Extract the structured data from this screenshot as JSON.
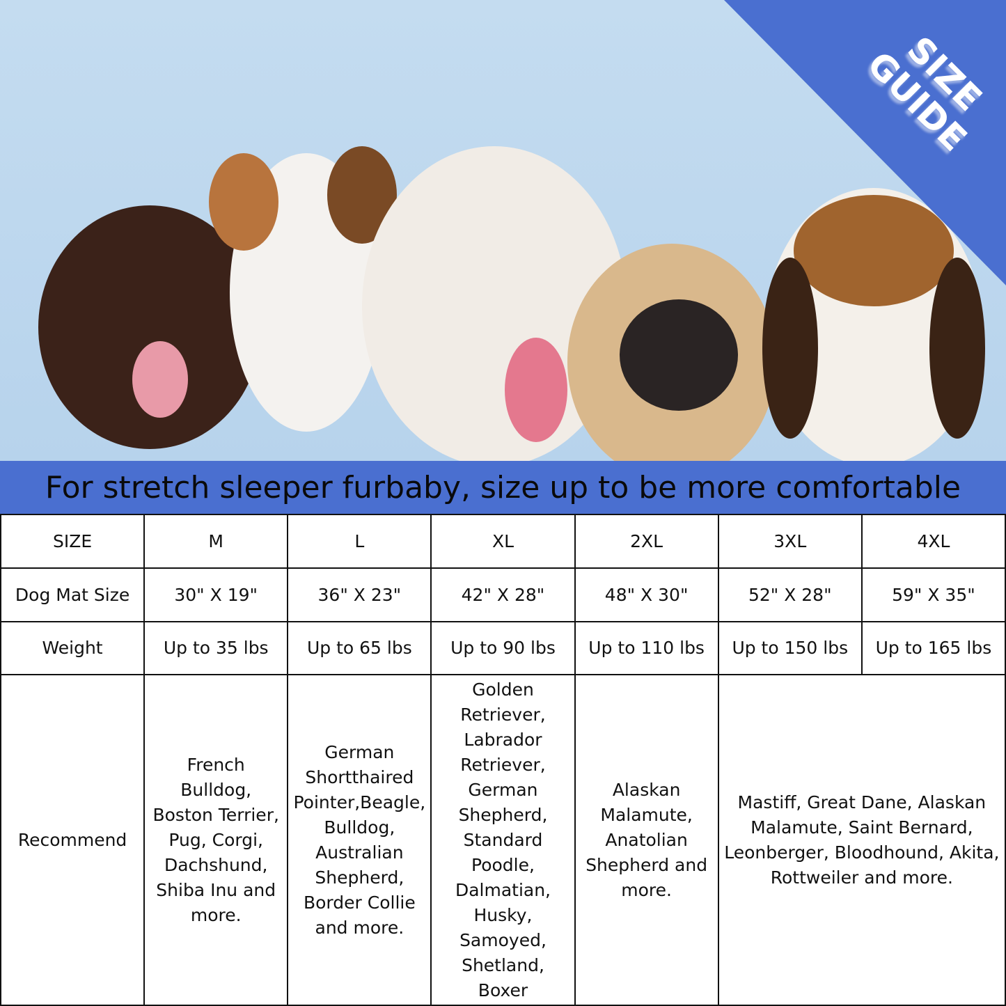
{
  "corner_label": [
    "SIZE",
    "GUIDE"
  ],
  "banner": "For stretch sleeper furbaby, size up to be more comfortable",
  "colors": {
    "accent": "#4a6fd0",
    "background": "#bcd8ef"
  },
  "table": {
    "size": {
      "label": "SIZE",
      "values": [
        "M",
        "L",
        "XL",
        "2XL",
        "3XL",
        "4XL"
      ]
    },
    "mat": {
      "label": "Dog Mat Size",
      "values": [
        "30\" X 19\"",
        "36\" X 23\"",
        "42\" X 28\"",
        "48\" X 30\"",
        "52\" X 28\"",
        "59\" X 35\""
      ]
    },
    "weight": {
      "label": "Weight",
      "values": [
        "Up to 35 lbs",
        "Up to 65 lbs",
        "Up to 90 lbs",
        "Up to 110 lbs",
        "Up to 150 lbs",
        "Up to 165 lbs"
      ]
    },
    "recommend": {
      "label": "Recommend",
      "values": [
        "French Bulldog, Boston Terrier, Pug, Corgi, Dachshund, Shiba Inu and more.",
        "German Shortthaired Pointer,Beagle, Bulldog, Australian Shepherd, Border Collie and more.",
        "Golden Retriever, Labrador Retriever, German Shepherd, Standard Poodle, Dalmatian, Husky, Samoyed, Shetland, Boxer",
        "Alaskan Malamute, Anatolian Shepherd and more.",
        "Mastiff, Great Dane, Alaskan Malamute, Saint Bernard, Leonberger, Bloodhound, Akita, Rottweiler and more."
      ]
    }
  }
}
